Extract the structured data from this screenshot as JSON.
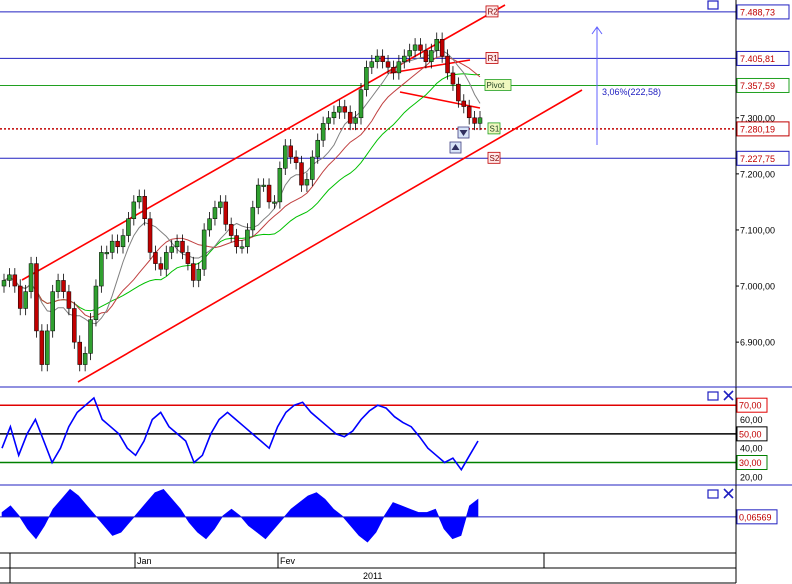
{
  "chart_data": [
    {
      "type": "candlestick",
      "panel": "price",
      "y_ticks": [
        "7.300,00",
        "7.200,00",
        "7.100,00",
        "7.000,00",
        "6.900,00"
      ],
      "y_tick_values": [
        7300,
        7200,
        7100,
        7000,
        6900
      ],
      "ylim": [
        6820,
        7510
      ],
      "levels": [
        {
          "tag": "R2",
          "label": "7.488,73",
          "value": 7488.73,
          "color": "#2020c0"
        },
        {
          "tag": "R1",
          "label": "7.405,81",
          "value": 7405.81,
          "color": "#2020c0"
        },
        {
          "tag": "Pivot",
          "label": "7.357,59",
          "value": 7357.59,
          "color": "#20a020"
        },
        {
          "tag": "",
          "label": "7.280,19",
          "value": 7280.19,
          "color": "#c00000"
        },
        {
          "tag": "S1",
          "label": "",
          "value": 7280.19,
          "color": "#20a020"
        },
        {
          "tag": "S2",
          "label": "7.227,75",
          "value": 7227.75,
          "color": "#2020c0"
        }
      ],
      "measurement_label": "3,06%(222,58)",
      "measurement_range": [
        7280.19,
        7502.77
      ],
      "closes": [
        7010,
        7020,
        7000,
        6960,
        6990,
        7040,
        6920,
        6860,
        6920,
        6990,
        7010,
        6990,
        6960,
        6900,
        6860,
        6880,
        6940,
        7000,
        7060,
        7060,
        7080,
        7070,
        7090,
        7120,
        7150,
        7160,
        7120,
        7060,
        7040,
        7030,
        7060,
        7070,
        7080,
        7060,
        7040,
        7010,
        7030,
        7100,
        7120,
        7140,
        7150,
        7110,
        7090,
        7070,
        7070,
        7100,
        7140,
        7180,
        7180,
        7150,
        7150,
        7210,
        7250,
        7230,
        7220,
        7180,
        7190,
        7230,
        7260,
        7290,
        7300,
        7310,
        7320,
        7310,
        7290,
        7300,
        7350,
        7390,
        7400,
        7410,
        7400,
        7390,
        7380,
        7400,
        7410,
        7420,
        7430,
        7420,
        7400,
        7420,
        7440,
        7410,
        7380,
        7360,
        7330,
        7320,
        7300,
        7290,
        7300
      ]
    },
    {
      "type": "line",
      "panel": "oscillator",
      "ylim": [
        15,
        82
      ],
      "y_ticks": [
        "60,00",
        "40,00",
        "20,00"
      ],
      "y_tick_values": [
        60,
        40,
        20
      ],
      "levels": [
        {
          "label": "70,00",
          "value": 70,
          "color": "#e00000"
        },
        {
          "label": "50,00",
          "value": 50,
          "color": "#000000"
        },
        {
          "label": "30,00",
          "value": 30,
          "color": "#008000"
        }
      ],
      "values": [
        40,
        55,
        35,
        50,
        60,
        45,
        30,
        40,
        55,
        65,
        70,
        75,
        60,
        55,
        50,
        40,
        35,
        45,
        60,
        65,
        55,
        50,
        45,
        30,
        35,
        50,
        60,
        65,
        60,
        55,
        50,
        45,
        40,
        55,
        65,
        70,
        72,
        65,
        60,
        55,
        50,
        48,
        52,
        60,
        66,
        70,
        68,
        62,
        58,
        55,
        48,
        40,
        35,
        30,
        33,
        25,
        35,
        45
      ]
    },
    {
      "type": "area",
      "panel": "histogram",
      "ylim": [
        -1,
        1
      ],
      "baseline_label": "0,06569",
      "baseline_value": 0.06569,
      "values": [
        0.2,
        0.4,
        0.1,
        -0.3,
        -0.6,
        -0.2,
        0.3,
        0.6,
        0.9,
        0.7,
        0.4,
        0.1,
        -0.2,
        -0.5,
        -0.4,
        -0.1,
        0.2,
        0.5,
        0.8,
        0.9,
        0.6,
        0.3,
        -0.1,
        -0.4,
        -0.6,
        -0.3,
        0.1,
        0.3,
        0.1,
        -0.2,
        -0.4,
        -0.6,
        -0.3,
        0.0,
        0.3,
        0.5,
        0.7,
        0.8,
        0.6,
        0.3,
        0.1,
        -0.2,
        -0.5,
        -0.7,
        -0.4,
        0.1,
        0.5,
        0.4,
        0.3,
        0.2,
        0.2,
        0.3,
        -0.3,
        -0.6,
        -0.5,
        0.4,
        0.6
      ]
    }
  ],
  "time_axis": {
    "labels": [
      "Jan",
      "Fev"
    ],
    "year": "2011"
  },
  "colors": {
    "level_blue": "#2020c0",
    "pivot_green": "#20a020",
    "channel_red": "#ff0000",
    "osc_blue": "#0000ff",
    "hist_blue": "#0000ff",
    "ma_green": "#00c000",
    "ma_red": "#c04040",
    "ma_gray": "#808080"
  },
  "icons": [
    "window-icon",
    "close-icon"
  ]
}
